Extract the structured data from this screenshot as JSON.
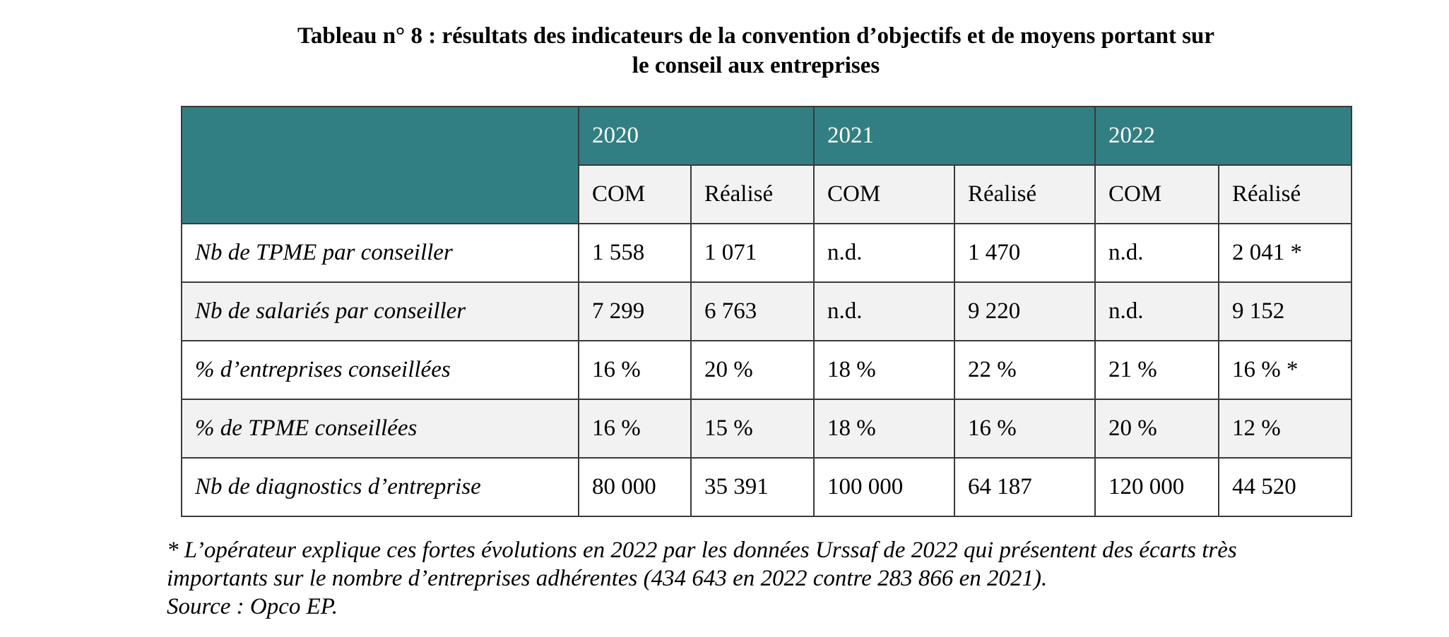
{
  "title": {
    "line1": "Tableau n° 8 :  résultats des indicateurs de la convention d’objectifs et de moyens portant sur",
    "line2": "le conseil aux entreprises"
  },
  "table": {
    "years": [
      "2020",
      "2021",
      "2022"
    ],
    "subheaders": [
      "COM",
      "Réalisé",
      "COM",
      "Réalisé",
      "COM",
      "Réalisé"
    ],
    "rows": [
      {
        "label": "Nb de TPME par conseiller",
        "values": [
          "1 558",
          "1 071",
          "n.d.",
          "1 470",
          "n.d.",
          "2 041 *"
        ]
      },
      {
        "label": "Nb de  salariés par conseiller",
        "values": [
          "7 299",
          "6 763",
          "n.d.",
          "9 220",
          "n.d.",
          "9 152"
        ]
      },
      {
        "label": "% d’entreprises conseillées",
        "values": [
          "16 %",
          "20 %",
          "18 %",
          "22 %",
          "21 %",
          "16 % *"
        ]
      },
      {
        "label": "% de TPME conseillées",
        "values": [
          "16 %",
          "15 %",
          "18 %",
          "16 %",
          "20 %",
          "12 %"
        ]
      },
      {
        "label": "Nb de diagnostics d’entreprise",
        "values": [
          "80 000",
          "35 391",
          "100 000",
          "64 187",
          "120 000",
          "44 520"
        ]
      }
    ]
  },
  "footnote": {
    "line1": "* L’opérateur explique ces fortes évolutions en 2022 par les données Urssaf de 2022 qui présentent des écarts très",
    "line2": "importants sur le nombre d’entreprises adhérentes (434 643 en 2022 contre 283 866 en 2021).",
    "source": "Source : Opco EP."
  },
  "colors": {
    "header_teal": "#317f83",
    "header_text": "#ffffff",
    "shaded_row": "#f2f2f2",
    "border": "#3a3a3a"
  }
}
